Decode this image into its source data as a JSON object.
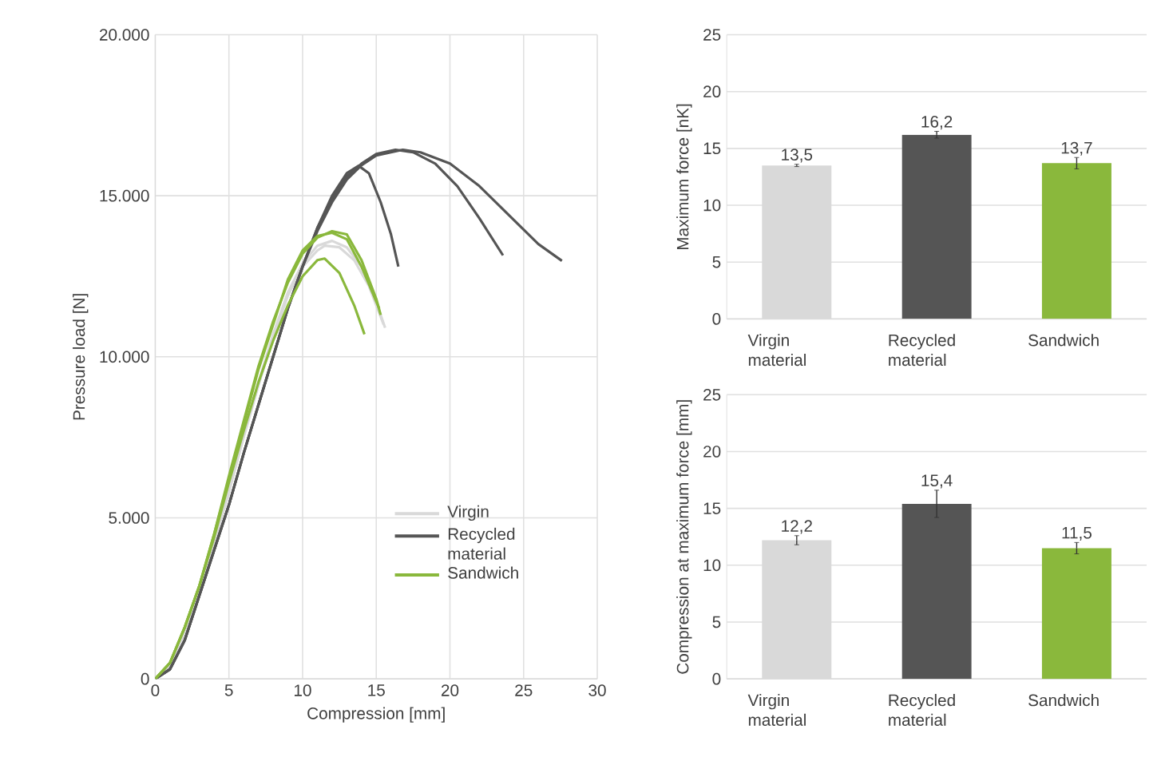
{
  "chart_data": [
    {
      "type": "line",
      "xlabel": "Compression [mm]",
      "ylabel": "Pressure load [N]",
      "xlim": [
        0,
        30
      ],
      "xticks": [
        0,
        5,
        10,
        15,
        20,
        25,
        30
      ],
      "ylim": [
        0,
        20000
      ],
      "yticks": [
        {
          "value": 0,
          "label": "0"
        },
        {
          "value": 5000,
          "label": "5.000"
        },
        {
          "value": 10000,
          "label": "10.000"
        },
        {
          "value": 15000,
          "label": "15.000"
        },
        {
          "value": 20000,
          "label": "20.000"
        }
      ],
      "grid": true,
      "legend": "bottom right",
      "line_style": "solid",
      "series": [
        {
          "name": "Virgin",
          "color": "#d9d9d9",
          "x": [
            0,
            1,
            2,
            3,
            4,
            5,
            6,
            7,
            8,
            9,
            10,
            11,
            11.5,
            12.5,
            13.5,
            14.5,
            15.5
          ],
          "values": [
            0,
            400,
            1400,
            2700,
            4200,
            5800,
            7500,
            9100,
            10600,
            11900,
            12800,
            13300,
            13450,
            13400,
            13000,
            12200,
            11000
          ]
        },
        {
          "color": "#d9d9d9",
          "x": [
            0,
            1,
            2,
            3,
            4,
            5,
            6,
            7,
            8,
            9,
            10,
            11,
            12,
            13,
            14,
            15,
            15.6
          ],
          "values": [
            0,
            400,
            1450,
            2750,
            4300,
            5900,
            7600,
            9200,
            10700,
            12000,
            12900,
            13450,
            13600,
            13400,
            12800,
            11700,
            10900
          ]
        },
        {
          "name": "Recycled material",
          "color": "#555555",
          "x": [
            0,
            1,
            2,
            3,
            4,
            5,
            6,
            7,
            8,
            9,
            10,
            11,
            12,
            13,
            13.8,
            14.5,
            15.3,
            16,
            16.5
          ],
          "values": [
            0,
            300,
            1200,
            2600,
            4000,
            5400,
            7000,
            8500,
            10000,
            11500,
            12800,
            14000,
            15000,
            15700,
            15930,
            15700,
            14800,
            13800,
            12800
          ]
        },
        {
          "color": "#555555",
          "x": [
            0,
            1,
            2,
            3,
            4,
            5,
            6,
            7,
            8,
            9,
            10,
            11,
            12,
            13,
            14,
            15,
            16.3,
            17.5,
            19,
            20.5,
            22,
            23.6
          ],
          "values": [
            0,
            300,
            1200,
            2600,
            4000,
            5400,
            7000,
            8500,
            10000,
            11500,
            12800,
            14000,
            14900,
            15600,
            16000,
            16300,
            16430,
            16350,
            16000,
            15300,
            14300,
            13150
          ]
        },
        {
          "color": "#555555",
          "x": [
            0,
            1,
            2,
            3,
            4,
            5,
            6,
            7,
            8,
            9,
            10,
            11,
            12,
            13,
            14,
            15,
            16.8,
            18,
            20,
            22,
            24,
            26,
            27.6
          ],
          "values": [
            0,
            300,
            1200,
            2600,
            4000,
            5400,
            7000,
            8500,
            10000,
            11500,
            12800,
            13900,
            14800,
            15500,
            15950,
            16250,
            16430,
            16350,
            16000,
            15300,
            14400,
            13500,
            12980
          ]
        },
        {
          "name": "Sandwich",
          "color": "#8ab83c",
          "x": [
            0,
            1,
            2,
            3,
            4,
            5,
            6,
            7,
            8,
            9,
            10,
            11,
            12,
            13,
            14,
            15,
            15.3
          ],
          "values": [
            0,
            500,
            1600,
            2900,
            4500,
            6300,
            8000,
            9700,
            11100,
            12300,
            13200,
            13700,
            13900,
            13800,
            13000,
            11800,
            11300
          ]
        },
        {
          "color": "#8ab83c",
          "x": [
            0,
            1,
            2,
            3,
            4,
            5,
            6,
            7,
            8,
            9,
            10,
            11,
            12,
            13,
            14,
            15.2
          ],
          "values": [
            0,
            500,
            1600,
            2900,
            4500,
            6200,
            7900,
            9600,
            11000,
            12400,
            13300,
            13750,
            13850,
            13650,
            12800,
            11500
          ]
        },
        {
          "color": "#8ab83c",
          "x": [
            0,
            1,
            2,
            3,
            4,
            5,
            6,
            7,
            8,
            9,
            10,
            11,
            11.5,
            12.5,
            13.5,
            14.2
          ],
          "values": [
            0,
            500,
            1600,
            2900,
            4400,
            6100,
            7700,
            9200,
            10500,
            11600,
            12500,
            13000,
            13050,
            12600,
            11600,
            10700
          ]
        }
      ]
    },
    {
      "type": "bar",
      "ylabel": "Maximum force [nK]",
      "categories": [
        "Virgin material",
        "Recycled material",
        "Sandwich"
      ],
      "values": [
        13.5,
        16.2,
        13.7
      ],
      "errors": [
        0.1,
        0.3,
        0.5
      ],
      "value_labels": [
        "13,5",
        "16,2",
        "13,7"
      ],
      "colors": [
        "#d9d9d9",
        "#555555",
        "#8ab83c"
      ],
      "ylim": [
        0,
        25
      ],
      "yticks": [
        0,
        5,
        10,
        15,
        20,
        25
      ],
      "grid": "y"
    },
    {
      "type": "bar",
      "ylabel": "Compression at maximum force [mm]",
      "categories": [
        "Virgin material",
        "Recycled material",
        "Sandwich"
      ],
      "values": [
        12.2,
        15.4,
        11.5
      ],
      "errors": [
        0.4,
        1.2,
        0.5
      ],
      "value_labels": [
        "12,2",
        "15,4",
        "11,5"
      ],
      "colors": [
        "#d9d9d9",
        "#555555",
        "#8ab83c"
      ],
      "ylim": [
        0,
        25
      ],
      "yticks": [
        0,
        5,
        10,
        15,
        20,
        25
      ],
      "grid": "y"
    }
  ]
}
